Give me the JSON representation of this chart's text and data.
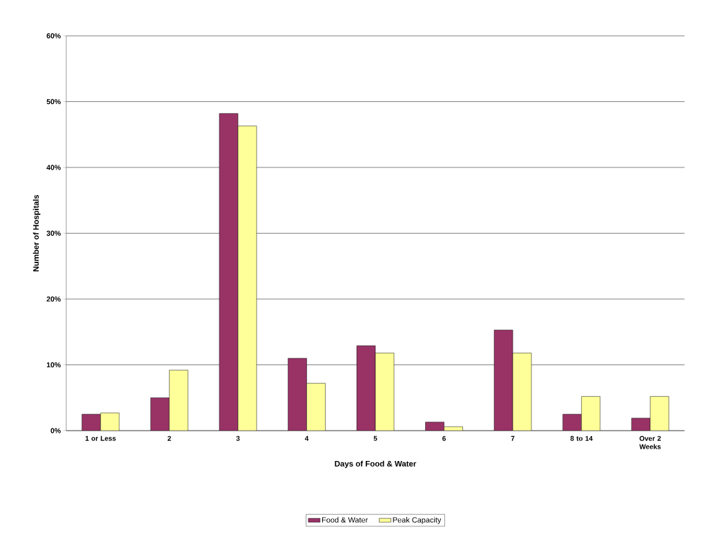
{
  "chart_data": {
    "type": "bar",
    "xlabel": "Days of Food & Water",
    "ylabel": "Number of Hospitals",
    "categories": [
      "1 or Less",
      "2",
      "3",
      "4",
      "5",
      "6",
      "7",
      "8 to 14",
      "Over 2 Weeks"
    ],
    "series": [
      {
        "name": "Food & Water",
        "color": "#993366",
        "values": [
          2.5,
          5.0,
          48.2,
          11.0,
          12.9,
          1.3,
          15.3,
          2.5,
          1.9
        ]
      },
      {
        "name": "Peak Capacity",
        "color": "#ffff99",
        "values": [
          2.7,
          9.2,
          46.3,
          7.2,
          11.8,
          0.6,
          11.8,
          5.2,
          5.2
        ]
      }
    ],
    "ylim": [
      0,
      60
    ],
    "yticks": [
      {
        "value": 0,
        "label": "0%"
      },
      {
        "value": 10,
        "label": "10%"
      },
      {
        "value": 20,
        "label": "20%"
      },
      {
        "value": 30,
        "label": "30%"
      },
      {
        "value": 40,
        "label": "40%"
      },
      {
        "value": 50,
        "label": "50%"
      },
      {
        "value": 60,
        "label": "60%"
      }
    ],
    "grid": "y",
    "legend": "bottom"
  }
}
